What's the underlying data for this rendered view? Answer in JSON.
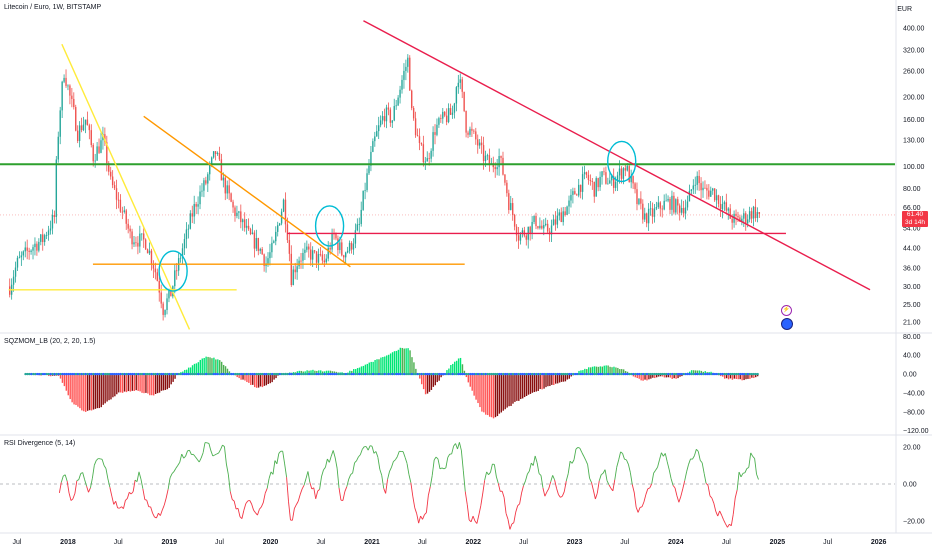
{
  "header": {
    "title": "Litecoin / Euro, 1W, BITSTAMP",
    "currency": "EUR"
  },
  "price_tag": {
    "price": "61.40",
    "countdown": "3d 14h"
  },
  "indicators": {
    "squeeze_title": "SQZMOM_LB (20, 2, 20, 1.5)",
    "rsi_title": "RSI Divergence (5, 14)"
  },
  "colors": {
    "up": "#26a69a",
    "down": "#ef5350",
    "hline_green": "#2ea02e",
    "hline_red": "#e91e4d",
    "orange": "#ff9800",
    "yellow": "#ffeb3b",
    "cyan": "#00bcd4",
    "mom_lime": "#00e676",
    "mom_green": "#4caf50",
    "mom_red": "#ff5252",
    "mom_maroon": "#880e0e"
  },
  "chart_data": [
    {
      "type": "candlestick",
      "title": "Litecoin / Euro, 1W, BITSTAMP",
      "scale": "log",
      "ylim": [
        19,
        460
      ],
      "xlim": [
        "2017-05-01",
        "2026-03-01"
      ],
      "y_ticks": [
        21,
        25,
        30,
        36,
        44,
        54,
        66,
        80,
        100,
        130,
        160,
        200,
        260,
        320,
        400
      ],
      "y_tick_labels": [
        "21.00",
        "25.00",
        "30.00",
        "36.00",
        "44.00",
        "54.00",
        "66.00",
        "80.00",
        "100.00",
        "130.00",
        "160.00",
        "200.00",
        "260.00",
        "320.00",
        "400.00"
      ],
      "x_ticks": [
        "2017-07-01",
        "2018-01-01",
        "2018-07-01",
        "2019-01-01",
        "2019-07-01",
        "2020-01-01",
        "2020-07-01",
        "2021-01-01",
        "2021-07-01",
        "2022-01-01",
        "2022-07-01",
        "2023-01-01",
        "2023-07-01",
        "2024-01-01",
        "2024-07-01",
        "2025-01-01",
        "2025-07-01",
        "2026-01-01"
      ],
      "x_tick_labels": [
        "Jul",
        "2018",
        "Jul",
        "2019",
        "Jul",
        "2020",
        "Jul",
        "2021",
        "Jul",
        "2022",
        "Jul",
        "2023",
        "Jul",
        "2024",
        "Jul",
        "2025",
        "Jul",
        "2026"
      ],
      "price_path": [
        [
          "2017-06-05",
          30
        ],
        [
          "2017-07-03",
          38
        ],
        [
          "2017-08-28",
          45
        ],
        [
          "2017-10-02",
          48
        ],
        [
          "2017-11-13",
          60
        ],
        [
          "2017-12-18",
          260
        ],
        [
          "2018-01-08",
          200
        ],
        [
          "2018-02-05",
          140
        ],
        [
          "2018-03-05",
          160
        ],
        [
          "2018-04-02",
          110
        ],
        [
          "2018-05-07",
          130
        ],
        [
          "2018-06-04",
          85
        ],
        [
          "2018-07-02",
          70
        ],
        [
          "2018-08-13",
          50
        ],
        [
          "2018-09-10",
          48
        ],
        [
          "2018-10-08",
          47
        ],
        [
          "2018-11-12",
          35
        ],
        [
          "2018-12-10",
          24
        ],
        [
          "2019-01-07",
          28
        ],
        [
          "2019-02-04",
          38
        ],
        [
          "2019-03-04",
          50
        ],
        [
          "2019-04-08",
          70
        ],
        [
          "2019-05-13",
          85
        ],
        [
          "2019-06-17",
          115
        ],
        [
          "2019-07-15",
          85
        ],
        [
          "2019-08-19",
          65
        ],
        [
          "2019-09-16",
          58
        ],
        [
          "2019-10-14",
          50
        ],
        [
          "2019-11-18",
          45
        ],
        [
          "2019-12-16",
          38
        ],
        [
          "2020-01-13",
          45
        ],
        [
          "2020-02-17",
          70
        ],
        [
          "2020-03-16",
          33
        ],
        [
          "2020-04-13",
          40
        ],
        [
          "2020-05-18",
          42
        ],
        [
          "2020-06-15",
          40
        ],
        [
          "2020-07-13",
          38
        ],
        [
          "2020-08-17",
          50
        ],
        [
          "2020-09-14",
          42
        ],
        [
          "2020-10-12",
          44
        ],
        [
          "2020-11-16",
          55
        ],
        [
          "2020-12-14",
          90
        ],
        [
          "2021-01-11",
          130
        ],
        [
          "2021-02-15",
          170
        ],
        [
          "2021-03-15",
          160
        ],
        [
          "2021-04-12",
          220
        ],
        [
          "2021-05-10",
          290
        ],
        [
          "2021-05-24",
          170
        ],
        [
          "2021-06-21",
          120
        ],
        [
          "2021-07-19",
          105
        ],
        [
          "2021-08-16",
          145
        ],
        [
          "2021-09-13",
          160
        ],
        [
          "2021-10-18",
          170
        ],
        [
          "2021-11-08",
          250
        ],
        [
          "2021-12-06",
          150
        ],
        [
          "2022-01-10",
          130
        ],
        [
          "2022-02-07",
          110
        ],
        [
          "2022-03-07",
          100
        ],
        [
          "2022-04-04",
          110
        ],
        [
          "2022-05-09",
          70
        ],
        [
          "2022-06-13",
          50
        ],
        [
          "2022-07-11",
          52
        ],
        [
          "2022-08-15",
          58
        ],
        [
          "2022-09-12",
          52
        ],
        [
          "2022-10-10",
          54
        ],
        [
          "2022-11-14",
          62
        ],
        [
          "2022-12-12",
          68
        ],
        [
          "2023-01-09",
          80
        ],
        [
          "2023-02-13",
          90
        ],
        [
          "2023-03-13",
          80
        ],
        [
          "2023-04-10",
          90
        ],
        [
          "2023-05-15",
          85
        ],
        [
          "2023-06-19",
          95
        ],
        [
          "2023-07-03",
          100
        ],
        [
          "2023-08-14",
          70
        ],
        [
          "2023-09-11",
          60
        ],
        [
          "2023-10-09",
          62
        ],
        [
          "2023-11-13",
          68
        ],
        [
          "2023-12-11",
          70
        ],
        [
          "2024-01-08",
          66
        ],
        [
          "2024-02-12",
          68
        ],
        [
          "2024-03-11",
          90
        ],
        [
          "2024-04-08",
          78
        ],
        [
          "2024-05-13",
          78
        ],
        [
          "2024-06-17",
          68
        ],
        [
          "2024-07-15",
          60
        ],
        [
          "2024-08-05",
          58
        ],
        [
          "2024-09-09",
          60
        ],
        [
          "2024-10-07",
          64
        ],
        [
          "2024-10-28",
          61.4
        ]
      ],
      "annotations": [
        {
          "type": "hline",
          "price": 102,
          "from": "2017-05-01",
          "to": "2026-03-01",
          "color": "#2ea02e"
        },
        {
          "type": "segment",
          "price": 51,
          "from": "2020-03-01",
          "to": "2025-02-01",
          "color": "#e91e4d"
        },
        {
          "type": "segment",
          "price": 37.5,
          "from": "2018-04-01",
          "to": "2021-12-01",
          "color": "#ff9800"
        },
        {
          "type": "segment",
          "price": 29,
          "from": "2017-06-01",
          "to": "2019-09-01",
          "color": "#ffeb3b"
        },
        {
          "type": "trend",
          "p1": [
            "2017-12-10",
            340
          ],
          "p2": [
            "2019-03-15",
            19.5
          ],
          "color": "#ffeb3b"
        },
        {
          "type": "trend",
          "p1": [
            "2018-10-01",
            165
          ],
          "p2": [
            "2020-10-15",
            36.5
          ],
          "color": "#ff9800"
        },
        {
          "type": "trend",
          "p1": [
            "2020-12-01",
            430
          ],
          "p2": [
            "2025-12-01",
            29
          ],
          "color": "#e91e4d"
        },
        {
          "type": "ellipse",
          "center": [
            "2019-01-15",
            35
          ],
          "color": "#00bcd4"
        },
        {
          "type": "ellipse",
          "center": [
            "2020-08-01",
            55
          ],
          "color": "#00bcd4"
        },
        {
          "type": "ellipse",
          "center": [
            "2023-06-20",
            105
          ],
          "color": "#00bcd4"
        }
      ]
    },
    {
      "type": "bar",
      "title": "SQZMOM_LB (20, 2, 20, 1.5)",
      "ylim": [
        -125,
        85
      ],
      "y_ticks": [
        80,
        40,
        0,
        -40,
        -80,
        -120
      ],
      "y_tick_labels": [
        "80.00",
        "40.00",
        "0.00",
        "−40.00",
        "−80.00",
        "−120.00"
      ],
      "values_by_date": [
        [
          "2017-08-01",
          0
        ],
        [
          "2017-12-01",
          -5
        ],
        [
          "2018-01-15",
          -60
        ],
        [
          "2018-03-01",
          -80
        ],
        [
          "2018-05-01",
          -70
        ],
        [
          "2018-07-01",
          -40
        ],
        [
          "2018-09-01",
          -35
        ],
        [
          "2018-11-01",
          -45
        ],
        [
          "2019-01-01",
          -30
        ],
        [
          "2019-02-01",
          0
        ],
        [
          "2019-04-01",
          20
        ],
        [
          "2019-05-15",
          38
        ],
        [
          "2019-07-01",
          30
        ],
        [
          "2019-08-15",
          0
        ],
        [
          "2019-10-01",
          -15
        ],
        [
          "2019-11-15",
          -30
        ],
        [
          "2020-01-01",
          -20
        ],
        [
          "2020-02-01",
          0
        ],
        [
          "2020-04-01",
          5
        ],
        [
          "2020-06-01",
          8
        ],
        [
          "2020-08-01",
          6
        ],
        [
          "2020-10-01",
          3
        ],
        [
          "2020-12-01",
          18
        ],
        [
          "2021-01-15",
          30
        ],
        [
          "2021-03-01",
          40
        ],
        [
          "2021-04-15",
          55
        ],
        [
          "2021-05-15",
          55
        ],
        [
          "2021-06-15",
          0
        ],
        [
          "2021-07-15",
          -45
        ],
        [
          "2021-08-15",
          -25
        ],
        [
          "2021-10-15",
          20
        ],
        [
          "2021-11-15",
          35
        ],
        [
          "2021-12-15",
          -20
        ],
        [
          "2022-02-01",
          -80
        ],
        [
          "2022-03-15",
          -95
        ],
        [
          "2022-04-15",
          -80
        ],
        [
          "2022-06-01",
          -60
        ],
        [
          "2022-08-01",
          -40
        ],
        [
          "2022-10-01",
          -25
        ],
        [
          "2022-12-01",
          -15
        ],
        [
          "2023-01-15",
          5
        ],
        [
          "2023-03-01",
          15
        ],
        [
          "2023-05-01",
          18
        ],
        [
          "2023-07-01",
          8
        ],
        [
          "2023-09-01",
          -15
        ],
        [
          "2023-11-01",
          -5
        ],
        [
          "2024-01-01",
          -10
        ],
        [
          "2024-03-01",
          8
        ],
        [
          "2024-05-01",
          5
        ],
        [
          "2024-07-01",
          -10
        ],
        [
          "2024-09-01",
          -12
        ],
        [
          "2024-10-28",
          -5
        ]
      ]
    },
    {
      "type": "line",
      "title": "RSI Divergence (5, 14)",
      "ylim": [
        -26,
        26
      ],
      "y_ticks": [
        20,
        0,
        -20
      ],
      "y_tick_labels": [
        "20.00",
        "0.00",
        "−20.00"
      ],
      "values_by_date": [
        [
          "2017-12-01",
          -5
        ],
        [
          "2017-12-20",
          5
        ],
        [
          "2018-01-15",
          -10
        ],
        [
          "2018-02-15",
          8
        ],
        [
          "2018-03-15",
          -5
        ],
        [
          "2018-04-15",
          15
        ],
        [
          "2018-05-15",
          10
        ],
        [
          "2018-06-15",
          -10
        ],
        [
          "2018-07-15",
          -15
        ],
        [
          "2018-08-15",
          -5
        ],
        [
          "2018-09-15",
          5
        ],
        [
          "2018-10-15",
          -12
        ],
        [
          "2018-11-15",
          -20
        ],
        [
          "2018-12-15",
          -10
        ],
        [
          "2019-01-15",
          8
        ],
        [
          "2019-02-15",
          15
        ],
        [
          "2019-03-15",
          20
        ],
        [
          "2019-04-15",
          10
        ],
        [
          "2019-05-15",
          25
        ],
        [
          "2019-06-15",
          15
        ],
        [
          "2019-07-15",
          22
        ],
        [
          "2019-08-15",
          -8
        ],
        [
          "2019-09-15",
          -18
        ],
        [
          "2019-10-15",
          -10
        ],
        [
          "2019-11-15",
          -15
        ],
        [
          "2019-12-15",
          -5
        ],
        [
          "2020-01-15",
          10
        ],
        [
          "2020-02-15",
          20
        ],
        [
          "2020-03-15",
          -20
        ],
        [
          "2020-04-15",
          -5
        ],
        [
          "2020-05-15",
          5
        ],
        [
          "2020-06-15",
          -8
        ],
        [
          "2020-07-15",
          10
        ],
        [
          "2020-08-15",
          18
        ],
        [
          "2020-09-15",
          -10
        ],
        [
          "2020-10-15",
          5
        ],
        [
          "2020-11-15",
          15
        ],
        [
          "2020-12-15",
          20
        ],
        [
          "2021-01-15",
          18
        ],
        [
          "2021-02-15",
          -5
        ],
        [
          "2021-03-15",
          10
        ],
        [
          "2021-04-15",
          20
        ],
        [
          "2021-05-15",
          5
        ],
        [
          "2021-06-15",
          -20
        ],
        [
          "2021-07-15",
          -15
        ],
        [
          "2021-08-15",
          15
        ],
        [
          "2021-09-15",
          5
        ],
        [
          "2021-10-15",
          18
        ],
        [
          "2021-11-15",
          22
        ],
        [
          "2021-12-15",
          -18
        ],
        [
          "2022-01-15",
          -20
        ],
        [
          "2022-02-15",
          5
        ],
        [
          "2022-03-15",
          10
        ],
        [
          "2022-04-15",
          -5
        ],
        [
          "2022-05-15",
          -25
        ],
        [
          "2022-06-15",
          -10
        ],
        [
          "2022-07-15",
          5
        ],
        [
          "2022-08-15",
          15
        ],
        [
          "2022-09-15",
          -5
        ],
        [
          "2022-10-15",
          5
        ],
        [
          "2022-11-15",
          -10
        ],
        [
          "2022-12-15",
          10
        ],
        [
          "2023-01-15",
          20
        ],
        [
          "2023-02-15",
          12
        ],
        [
          "2023-03-15",
          -8
        ],
        [
          "2023-04-15",
          8
        ],
        [
          "2023-05-15",
          -5
        ],
        [
          "2023-06-15",
          20
        ],
        [
          "2023-07-15",
          10
        ],
        [
          "2023-08-15",
          -15
        ],
        [
          "2023-09-15",
          -8
        ],
        [
          "2023-10-15",
          5
        ],
        [
          "2023-11-15",
          18
        ],
        [
          "2023-12-15",
          5
        ],
        [
          "2024-01-15",
          -10
        ],
        [
          "2024-02-15",
          10
        ],
        [
          "2024-03-15",
          20
        ],
        [
          "2024-04-15",
          5
        ],
        [
          "2024-05-15",
          -12
        ],
        [
          "2024-06-15",
          -18
        ],
        [
          "2024-07-15",
          -25
        ],
        [
          "2024-08-15",
          5
        ],
        [
          "2024-09-15",
          8
        ],
        [
          "2024-10-01",
          18
        ],
        [
          "2024-10-28",
          0
        ]
      ]
    }
  ]
}
